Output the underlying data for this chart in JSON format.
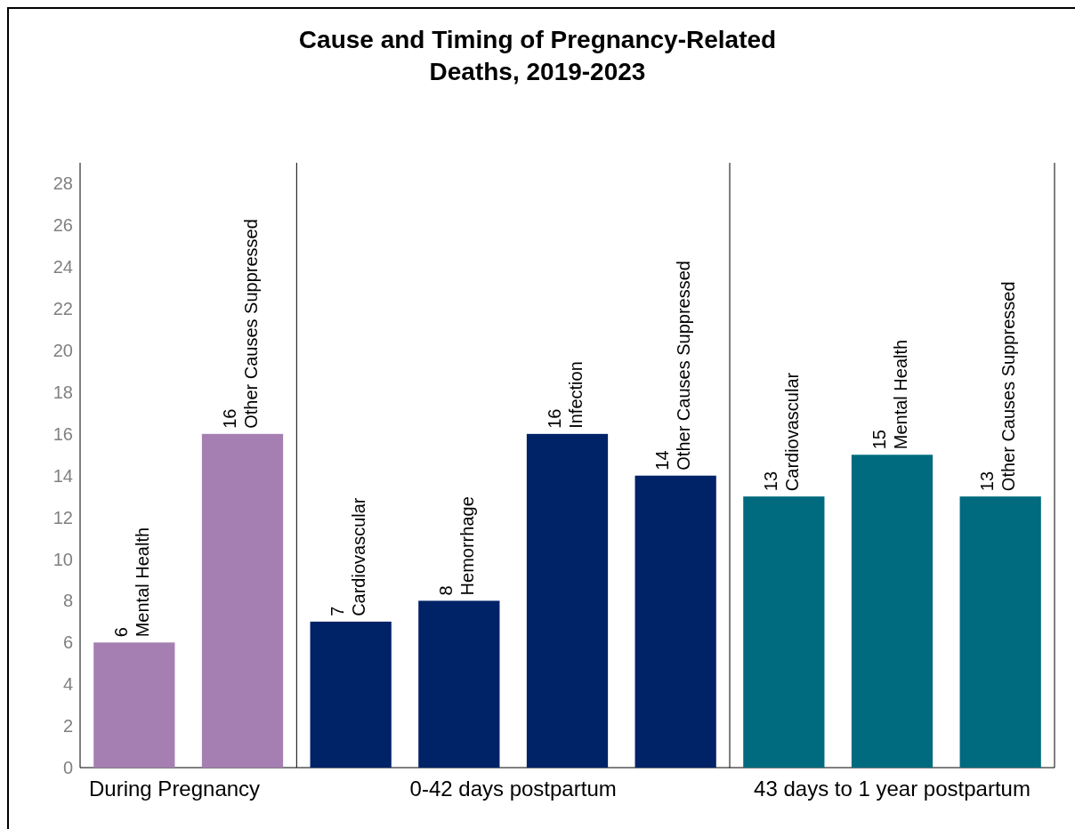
{
  "chart_data": [
    {
      "type": "bar",
      "xlabel": "During Pregnancy",
      "categories": [
        "Mental Health",
        "Other Causes Suppressed"
      ],
      "values": [
        6,
        16
      ],
      "color": "#a57fb2",
      "ylim": [
        0,
        29
      ],
      "yticks": [
        0,
        2,
        4,
        6,
        8,
        10,
        12,
        14,
        16,
        18,
        20,
        22,
        24,
        26,
        28
      ],
      "data_labels": true
    },
    {
      "type": "bar",
      "title": "Cause and Timing of Pregnancy-Related Deaths, 2019-2023",
      "xlabel": "0-42 days postpartum",
      "categories": [
        "Cardiovascular",
        "Hemorrhage",
        "Infection",
        "Other Causes Suppressed"
      ],
      "values": [
        7,
        8,
        16,
        14
      ],
      "color": "#002266",
      "ylim": [
        0,
        29
      ],
      "data_labels": true,
      "tick_labels": "x"
    },
    {
      "type": "bar",
      "xlabel": "43 days to 1 year postpartum",
      "categories": [
        "Cardiovascular",
        "Mental Health",
        "Other Causes Suppressed"
      ],
      "values": [
        13,
        15,
        13
      ],
      "color": "#006a7f",
      "ylim": [
        0,
        29
      ],
      "data_labels": true,
      "tick_labels": "x"
    }
  ]
}
